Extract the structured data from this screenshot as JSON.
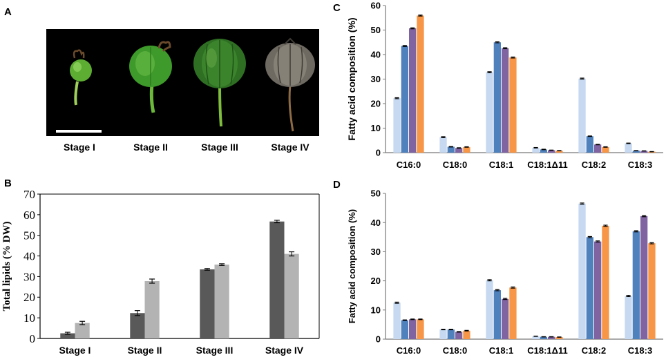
{
  "panels": {
    "A": {
      "letter": "A",
      "stages": [
        "Stage I",
        "Stage II",
        "Stage III",
        "Stage IV"
      ]
    },
    "B": {
      "letter": "B"
    },
    "C": {
      "letter": "C"
    },
    "D": {
      "letter": "D"
    }
  },
  "colors": {
    "B_series": [
      "#595959",
      "#b3b3b3"
    ],
    "CD_series": [
      "#c6d9f1",
      "#4f81bd",
      "#8064a2",
      "#f79646"
    ]
  },
  "chart_data": [
    {
      "id": "B",
      "type": "bar",
      "title": "",
      "xlabel": "",
      "ylabel": "Total lipids (% DW)",
      "categories": [
        "Stage I",
        "Stage II",
        "Stage III",
        "Stage IV"
      ],
      "ylim": [
        0,
        70
      ],
      "yticks": [
        0,
        10,
        20,
        30,
        40,
        50,
        60,
        70
      ],
      "series": [
        {
          "name": "series 1",
          "values": [
            2.5,
            12.3,
            33.5,
            56.7
          ],
          "errors": [
            0.5,
            1.2,
            0.4,
            0.6
          ]
        },
        {
          "name": "series 2",
          "values": [
            7.5,
            27.8,
            35.8,
            41.0
          ],
          "errors": [
            0.8,
            1.0,
            0.4,
            1.0
          ]
        }
      ],
      "grid": false
    },
    {
      "id": "C",
      "type": "bar",
      "title": "",
      "xlabel": "",
      "ylabel": "Fatty acid composition (%)",
      "categories": [
        "C16:0",
        "C18:0",
        "C18:1",
        "C18:1Δ11",
        "C18:2",
        "C18:3"
      ],
      "ylim": [
        0,
        60
      ],
      "yticks": [
        0,
        10,
        20,
        30,
        40,
        50,
        60
      ],
      "series": [
        {
          "name": "Stage I",
          "values": [
            22.2,
            6.3,
            32.8,
            2.0,
            30.2,
            3.8
          ],
          "errors": [
            0.2,
            0.2,
            0.2,
            0.1,
            0.2,
            0.1
          ]
        },
        {
          "name": "Stage II",
          "values": [
            43.5,
            2.4,
            45.0,
            1.3,
            6.7,
            0.8
          ],
          "errors": [
            0.2,
            0.1,
            0.2,
            0.1,
            0.1,
            0.05
          ]
        },
        {
          "name": "Stage III",
          "values": [
            50.7,
            1.9,
            42.6,
            1.0,
            3.3,
            0.7
          ],
          "errors": [
            0.2,
            0.1,
            0.2,
            0.05,
            0.1,
            0.05
          ]
        },
        {
          "name": "Stage IV",
          "values": [
            55.9,
            2.3,
            38.8,
            0.8,
            2.3,
            0.4
          ],
          "errors": [
            0.2,
            0.1,
            0.2,
            0.05,
            0.1,
            0.05
          ]
        }
      ],
      "grid": false
    },
    {
      "id": "D",
      "type": "bar",
      "title": "",
      "xlabel": "",
      "ylabel": "Fatty acid composition (%)",
      "categories": [
        "C16:0",
        "C18:0",
        "C18:1",
        "C18:1Δ11",
        "C18:2",
        "C18:3"
      ],
      "ylim": [
        0,
        50
      ],
      "yticks": [
        0,
        10,
        20,
        30,
        40,
        50
      ],
      "series": [
        {
          "name": "Stage I",
          "values": [
            12.5,
            3.3,
            20.2,
            1.0,
            46.5,
            14.8
          ],
          "errors": [
            0.2,
            0.1,
            0.2,
            0.05,
            0.2,
            0.2
          ]
        },
        {
          "name": "Stage II",
          "values": [
            6.5,
            3.3,
            16.8,
            0.8,
            35.0,
            37.0
          ],
          "errors": [
            0.1,
            0.1,
            0.2,
            0.05,
            0.2,
            0.2
          ]
        },
        {
          "name": "Stage III",
          "values": [
            6.8,
            2.5,
            13.8,
            0.8,
            33.5,
            42.2
          ],
          "errors": [
            0.1,
            0.1,
            0.2,
            0.05,
            0.2,
            0.2
          ]
        },
        {
          "name": "Stage IV",
          "values": [
            6.8,
            2.9,
            17.7,
            0.7,
            38.9,
            32.9
          ],
          "errors": [
            0.1,
            0.1,
            0.2,
            0.05,
            0.2,
            0.2
          ]
        }
      ],
      "grid": false
    }
  ]
}
